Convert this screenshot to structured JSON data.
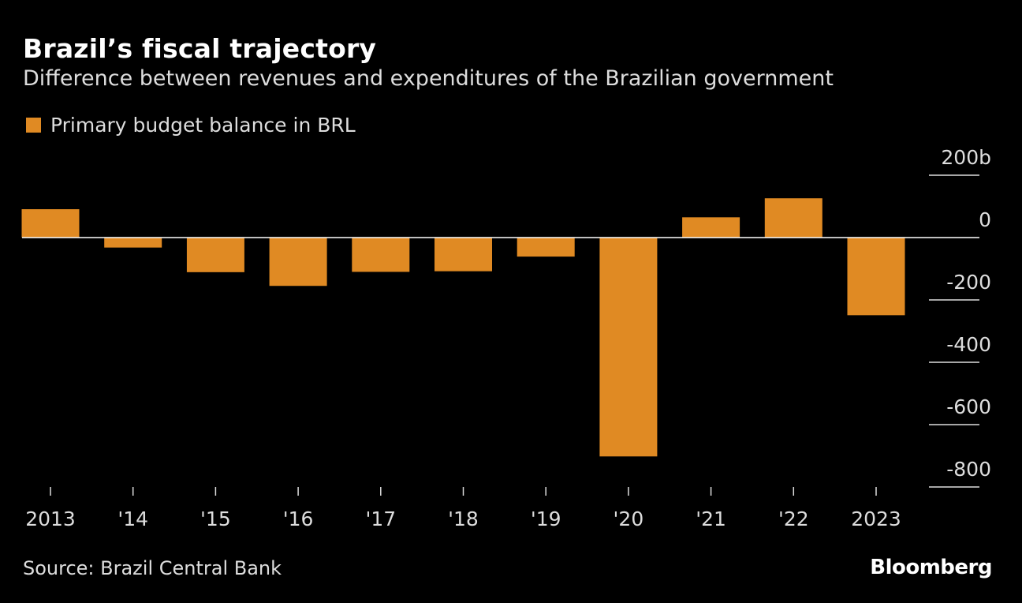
{
  "title": "Brazil’s fiscal trajectory",
  "subtitle": "Difference between revenues and expenditures of the Brazilian government",
  "source": "Source: Brazil Central Bank",
  "logo": "Bloomberg",
  "colors": {
    "bar": "#E08A23",
    "background": "#000000"
  },
  "chart_data": {
    "type": "bar",
    "categories": [
      "2013",
      "'14",
      "'15",
      "'16",
      "'17",
      "'18",
      "'19",
      "'20",
      "'21",
      "'22",
      "2023"
    ],
    "series": [
      {
        "name": "Primary budget balance in BRL",
        "values": [
          91,
          -32,
          -111,
          -155,
          -110,
          -108,
          -61,
          -702,
          65,
          126,
          -249
        ]
      }
    ],
    "ylim": [
      -800,
      200
    ],
    "yticks": [
      200,
      0,
      -200,
      -400,
      -600,
      -800
    ],
    "ytick_labels": [
      "200b",
      "0",
      "-200",
      "-400",
      "-600",
      "-800"
    ],
    "y_axis_position": "right",
    "legend_position": "top-left",
    "grid": false
  }
}
